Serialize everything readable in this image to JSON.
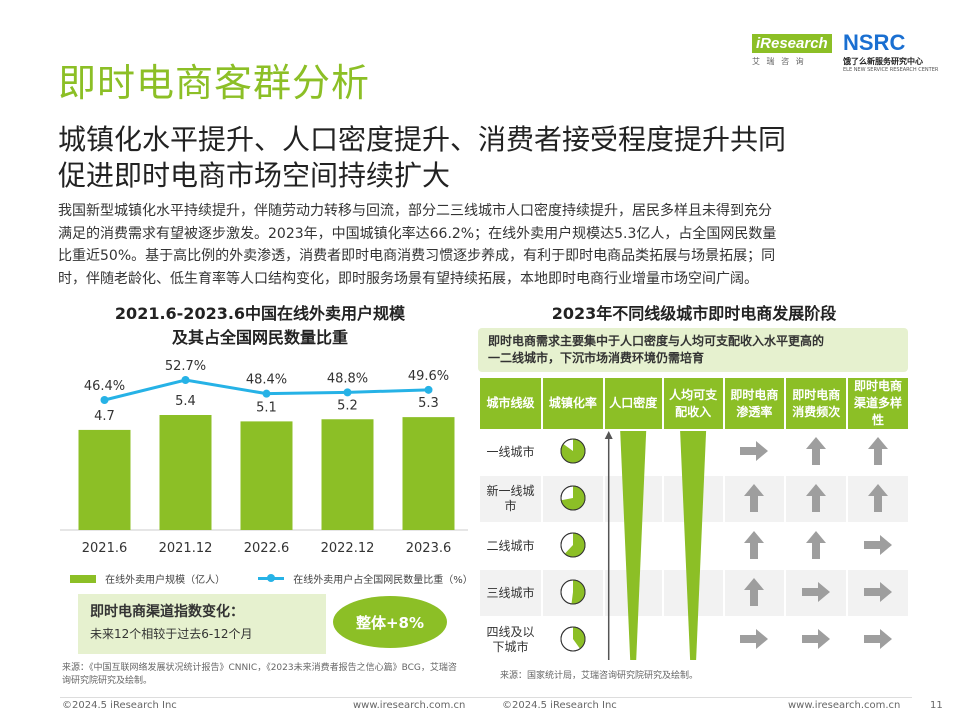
{
  "logo": {
    "ir_text": "iResearch",
    "ir_sub": "艾 瑞 咨 询",
    "nsrc_text": "NSRC",
    "nsrc_cn": "饿了么新服务研究中心",
    "nsrc_en": "ELE NEW SERVICE RESEARCH CENTER"
  },
  "page_title": "即时电商客群分析",
  "subtitle_line1": "城镇化水平提升、人口密度提升、消费者接受程度提升共同",
  "subtitle_line2": "促进即时电商市场空间持续扩大",
  "body_lines": [
    "我国新型城镇化水平持续提升，伴随劳动力转移与回流，部分二三线城市人口密度持续提升，居民多样且未得到充分",
    "满足的消费需求有望被逐步激发。2023年，中国城镇化率达66.2%；在线外卖用户规模达5.3亿人，占全国网民数量",
    "比重近50%。基于高比例的外卖渗透，消费者即时电商消费习惯逐步养成，有利于即时电商品类拓展与场景拓展；同",
    "时，伴随老龄化、低生育率等人口结构变化，即时服务场景有望持续拓展，本地即时电商行业增量市场空间广阔。"
  ],
  "left_chart": {
    "title_line1": "2021.6-2023.6中国在线外卖用户规模",
    "title_line2": "及其占全国网民数量比重",
    "legend_bar": "在线外卖用户规模（亿人）",
    "legend_line": "在线外卖用户占全国网民数量比重（%）",
    "bar_color": "#8cbf26",
    "line_color": "#26b2e6"
  },
  "chart_data": {
    "type": "bar",
    "categories": [
      "2021.6",
      "2021.12",
      "2022.6",
      "2022.12",
      "2023.6"
    ],
    "series": [
      {
        "name": "在线外卖用户规模（亿人）",
        "values": [
          4.7,
          5.4,
          5.1,
          5.2,
          5.3
        ],
        "type": "bar",
        "labels": [
          "4.7",
          "5.4",
          "5.1",
          "5.2",
          "5.3"
        ]
      },
      {
        "name": "在线外卖用户占全国网民数量比重（%）",
        "values": [
          46.4,
          52.7,
          48.4,
          48.8,
          49.6
        ],
        "type": "line",
        "labels": [
          "46.4%",
          "52.7%",
          "48.4%",
          "48.8%",
          "49.6%"
        ]
      }
    ],
    "title": "2021.6-2023.6中国在线外卖用户规模及其占全国网民数量比重",
    "legend_position": "bottom",
    "grid": false
  },
  "channel": {
    "title": "即时电商渠道指数变化：",
    "desc": "未来12个相较于过去6-12个月",
    "badge": "整体+8%"
  },
  "right_panel": {
    "title": "2023年不同线级城市即时电商发展阶段",
    "note_line1": "即时电商需求主要集中于人口密度与人均可支配收入水平更高的",
    "note_line2": "一二线城市，下沉市场消费环境仍需培育",
    "headers": [
      "城市线级",
      "城镇化率",
      "人口密度",
      "人均可支配收入",
      "即时电商渗透率",
      "即时电商消费频次",
      "即时电商渠道多样性"
    ],
    "rows": [
      {
        "city": "一线城市",
        "urbanization": 0.85,
        "penetration": "right",
        "frequency": "up",
        "diversity": "up"
      },
      {
        "city": "新一线城市",
        "urbanization": 0.72,
        "penetration": "up",
        "frequency": "up",
        "diversity": "up"
      },
      {
        "city": "二线城市",
        "urbanization": 0.62,
        "penetration": "up",
        "frequency": "up",
        "diversity": "right"
      },
      {
        "city": "三线城市",
        "urbanization": 0.52,
        "penetration": "up",
        "frequency": "right",
        "diversity": "right"
      },
      {
        "city": "四线及以下城市",
        "urbanization": 0.4,
        "penetration": "right",
        "frequency": "right",
        "diversity": "right"
      }
    ],
    "arrow_color": "#9e9e9e",
    "accent_color": "#8cbf26"
  },
  "sources": {
    "left": "来源：《中国互联网络发展状况统计报告》CNNIC，《2023未来消费者报告之信心篇》BCG，艾瑞咨询研究院研究及绘制。",
    "right": "来源：国家统计局，艾瑞咨询研究院研究及绘制。"
  },
  "footer": {
    "copyright_left": "©2024.5 iResearch Inc",
    "url_left": "www.iresearch.com.cn",
    "copyright_right": "©2024.5 iResearch Inc",
    "url_right": "www.iresearch.com.cn",
    "page_number": "11"
  }
}
